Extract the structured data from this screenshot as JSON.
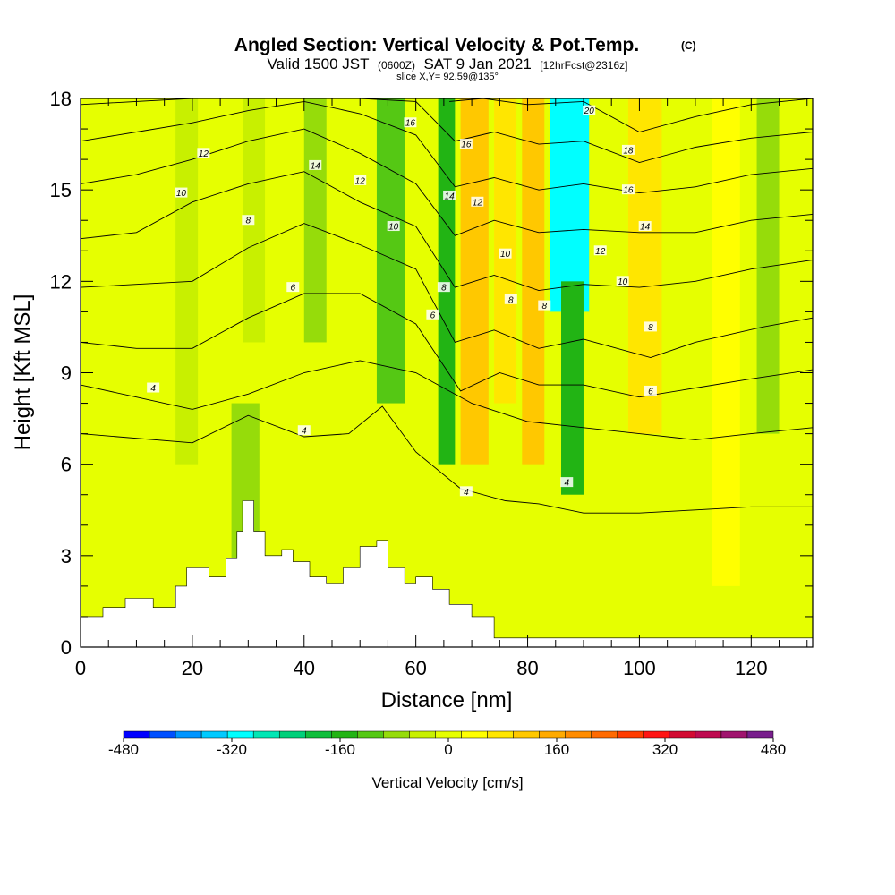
{
  "title": {
    "main": "Angled Section: Vertical Velocity & Pot.Temp.",
    "copyright": "(C)",
    "valid_a": "Valid 1500 JST",
    "valid_b": "(0600Z)",
    "valid_c": "SAT 9 Jan 2021",
    "valid_d": "[12hrFcst@2316z]",
    "slice": "slice X,Y= 92,59@135°"
  },
  "chart_data": {
    "type": "heatmap",
    "xlabel": "Distance [nm]",
    "ylabel": "Height [Kft MSL]",
    "xlim": [
      0,
      131
    ],
    "ylim": [
      0,
      18
    ],
    "x_ticks": [
      0,
      20,
      40,
      60,
      80,
      100,
      120
    ],
    "y_ticks": [
      0,
      3,
      6,
      9,
      12,
      15,
      18
    ],
    "colorbar": {
      "label": "Vertical Velocity [cm/s]",
      "range": [
        -480,
        480
      ],
      "step": 40,
      "tick_labels": [
        "-480",
        "-320",
        "-160",
        "0",
        "160",
        "320",
        "480"
      ],
      "colors": [
        "#0000ff",
        "#0050ff",
        "#0095ff",
        "#00caff",
        "#00ffff",
        "#00e6b4",
        "#00d07a",
        "#10be3c",
        "#22b414",
        "#55c814",
        "#96dc0a",
        "#c8f000",
        "#e6ff00",
        "#ffff00",
        "#ffe600",
        "#ffc800",
        "#ffaa00",
        "#ff8c00",
        "#ff6a00",
        "#ff3c00",
        "#ff1414",
        "#d20a32",
        "#be0a50",
        "#a0146e",
        "#781e8c"
      ]
    },
    "vertical_velocity_cells": [
      {
        "x": [
          0,
          20
        ],
        "y": [
          0,
          18
        ],
        "value": 10
      },
      {
        "x": [
          17,
          21
        ],
        "y": [
          6,
          18
        ],
        "value": -40
      },
      {
        "x": [
          27,
          32
        ],
        "y": [
          2,
          8
        ],
        "value": -60
      },
      {
        "x": [
          29,
          33
        ],
        "y": [
          10,
          18
        ],
        "value": -40
      },
      {
        "x": [
          40,
          44
        ],
        "y": [
          10,
          18
        ],
        "value": -80
      },
      {
        "x": [
          53,
          58
        ],
        "y": [
          8,
          18
        ],
        "value": -120
      },
      {
        "x": [
          64,
          67
        ],
        "y": [
          6,
          18
        ],
        "value": -140
      },
      {
        "x": [
          68,
          73
        ],
        "y": [
          6,
          18
        ],
        "value": 130
      },
      {
        "x": [
          74,
          78
        ],
        "y": [
          8,
          18
        ],
        "value": 100
      },
      {
        "x": [
          79,
          83
        ],
        "y": [
          6,
          18
        ],
        "value": 140
      },
      {
        "x": [
          84,
          91
        ],
        "y": [
          11,
          18
        ],
        "value": -320
      },
      {
        "x": [
          86,
          90
        ],
        "y": [
          5,
          12
        ],
        "value": -160
      },
      {
        "x": [
          98,
          104
        ],
        "y": [
          7,
          18
        ],
        "value": 90
      },
      {
        "x": [
          113,
          118
        ],
        "y": [
          2,
          18
        ],
        "value": 60
      },
      {
        "x": [
          121,
          125
        ],
        "y": [
          7,
          18
        ],
        "value": -60
      }
    ],
    "terrain_height_kft": [
      [
        0,
        1.0
      ],
      [
        4,
        1.3
      ],
      [
        8,
        1.6
      ],
      [
        13,
        1.3
      ],
      [
        17,
        2.0
      ],
      [
        19,
        2.6
      ],
      [
        23,
        2.3
      ],
      [
        26,
        2.9
      ],
      [
        28,
        3.8
      ],
      [
        29,
        4.8
      ],
      [
        31,
        3.8
      ],
      [
        33,
        3.0
      ],
      [
        36,
        3.2
      ],
      [
        38,
        2.8
      ],
      [
        41,
        2.3
      ],
      [
        44,
        2.1
      ],
      [
        47,
        2.6
      ],
      [
        50,
        3.3
      ],
      [
        53,
        3.5
      ],
      [
        55,
        2.6
      ],
      [
        58,
        2.1
      ],
      [
        60,
        2.3
      ],
      [
        63,
        1.9
      ],
      [
        66,
        1.4
      ],
      [
        70,
        1.0
      ],
      [
        74,
        0.3
      ],
      [
        131,
        0.3
      ]
    ],
    "pot_temp_contours": [
      {
        "label": "4",
        "x": [
          0,
          20,
          30,
          40,
          48,
          54,
          60,
          68,
          76,
          82,
          90,
          100,
          110,
          120,
          131
        ],
        "y": [
          7.0,
          6.7,
          7.6,
          6.9,
          7.0,
          7.9,
          6.4,
          5.2,
          4.8,
          4.7,
          4.4,
          4.4,
          4.5,
          4.6,
          4.6
        ]
      },
      {
        "label": "4",
        "x": [
          0,
          10,
          20,
          30,
          40,
          50,
          60,
          70,
          80,
          90,
          100,
          110,
          120,
          131
        ],
        "y": [
          8.6,
          8.2,
          7.8,
          8.3,
          9.0,
          9.4,
          9.0,
          8.0,
          7.4,
          7.2,
          7.0,
          6.8,
          7.0,
          7.2
        ]
      },
      {
        "label": "6",
        "x": [
          0,
          10,
          20,
          30,
          40,
          50,
          60,
          68,
          75,
          82,
          90,
          100,
          110,
          120,
          131
        ],
        "y": [
          10.0,
          9.8,
          9.8,
          10.8,
          11.6,
          11.6,
          10.6,
          8.4,
          9.0,
          8.6,
          8.6,
          8.2,
          8.5,
          8.8,
          9.1
        ]
      },
      {
        "label": "8",
        "x": [
          0,
          10,
          20,
          30,
          40,
          50,
          60,
          67,
          74,
          82,
          90,
          102,
          110,
          122,
          131
        ],
        "y": [
          11.8,
          11.9,
          12.0,
          13.1,
          13.9,
          13.2,
          12.4,
          10.0,
          10.4,
          9.8,
          10.1,
          9.5,
          10.0,
          10.5,
          10.8
        ]
      },
      {
        "label": "10",
        "x": [
          0,
          10,
          20,
          30,
          40,
          50,
          60,
          67,
          74,
          82,
          90,
          100,
          110,
          120,
          131
        ],
        "y": [
          13.4,
          13.6,
          14.6,
          15.2,
          15.6,
          14.6,
          13.8,
          11.8,
          12.2,
          11.7,
          11.9,
          11.8,
          12.0,
          12.4,
          12.7
        ]
      },
      {
        "label": "12",
        "x": [
          0,
          10,
          20,
          30,
          40,
          50,
          60,
          67,
          74,
          82,
          90,
          100,
          110,
          120,
          131
        ],
        "y": [
          15.2,
          15.5,
          16.0,
          16.6,
          17.0,
          16.2,
          15.2,
          13.5,
          14.0,
          13.6,
          13.7,
          13.6,
          13.6,
          14.0,
          14.2
        ]
      },
      {
        "label": "14",
        "x": [
          0,
          10,
          20,
          30,
          40,
          50,
          60,
          67,
          74,
          82,
          90,
          100,
          110,
          120,
          131
        ],
        "y": [
          16.6,
          16.9,
          17.2,
          17.6,
          17.9,
          17.5,
          16.8,
          15.1,
          15.4,
          15.0,
          15.2,
          14.9,
          15.1,
          15.5,
          15.7
        ]
      },
      {
        "label": "16",
        "x": [
          0,
          20,
          40,
          50,
          60,
          67,
          74,
          82,
          90,
          100,
          110,
          120,
          131
        ],
        "y": [
          17.8,
          18.0,
          18.0,
          18.0,
          17.9,
          16.6,
          16.9,
          16.5,
          16.6,
          15.9,
          16.4,
          16.7,
          16.9
        ]
      },
      {
        "label": "18",
        "x": [
          66,
          72,
          80,
          90,
          100,
          110,
          120,
          131
        ],
        "y": [
          17.9,
          18.0,
          17.8,
          17.9,
          16.9,
          17.4,
          17.8,
          18.0
        ]
      }
    ],
    "contour_labels": [
      {
        "text": "4",
        "x": 13,
        "y": 8.5
      },
      {
        "text": "4",
        "x": 40,
        "y": 7.1
      },
      {
        "text": "4",
        "x": 69,
        "y": 5.1
      },
      {
        "text": "4",
        "x": 87,
        "y": 5.4
      },
      {
        "text": "6",
        "x": 38,
        "y": 11.8
      },
      {
        "text": "6",
        "x": 63,
        "y": 10.9
      },
      {
        "text": "6",
        "x": 102,
        "y": 8.4
      },
      {
        "text": "8",
        "x": 30,
        "y": 14.0
      },
      {
        "text": "8",
        "x": 65,
        "y": 11.8
      },
      {
        "text": "8",
        "x": 77,
        "y": 11.4
      },
      {
        "text": "8",
        "x": 83,
        "y": 11.2
      },
      {
        "text": "8",
        "x": 102,
        "y": 10.5
      },
      {
        "text": "10",
        "x": 18,
        "y": 14.9
      },
      {
        "text": "10",
        "x": 56,
        "y": 13.8
      },
      {
        "text": "10",
        "x": 76,
        "y": 12.9
      },
      {
        "text": "10",
        "x": 97,
        "y": 12.0
      },
      {
        "text": "12",
        "x": 22,
        "y": 16.2
      },
      {
        "text": "12",
        "x": 50,
        "y": 15.3
      },
      {
        "text": "12",
        "x": 71,
        "y": 14.6
      },
      {
        "text": "12",
        "x": 93,
        "y": 13.0
      },
      {
        "text": "14",
        "x": 42,
        "y": 15.8
      },
      {
        "text": "14",
        "x": 66,
        "y": 14.8
      },
      {
        "text": "14",
        "x": 101,
        "y": 13.8
      },
      {
        "text": "16",
        "x": 59,
        "y": 17.2
      },
      {
        "text": "16",
        "x": 69,
        "y": 16.5
      },
      {
        "text": "16",
        "x": 98,
        "y": 15.0
      },
      {
        "text": "18",
        "x": 98,
        "y": 16.3
      },
      {
        "text": "20",
        "x": 91,
        "y": 17.6
      }
    ]
  }
}
